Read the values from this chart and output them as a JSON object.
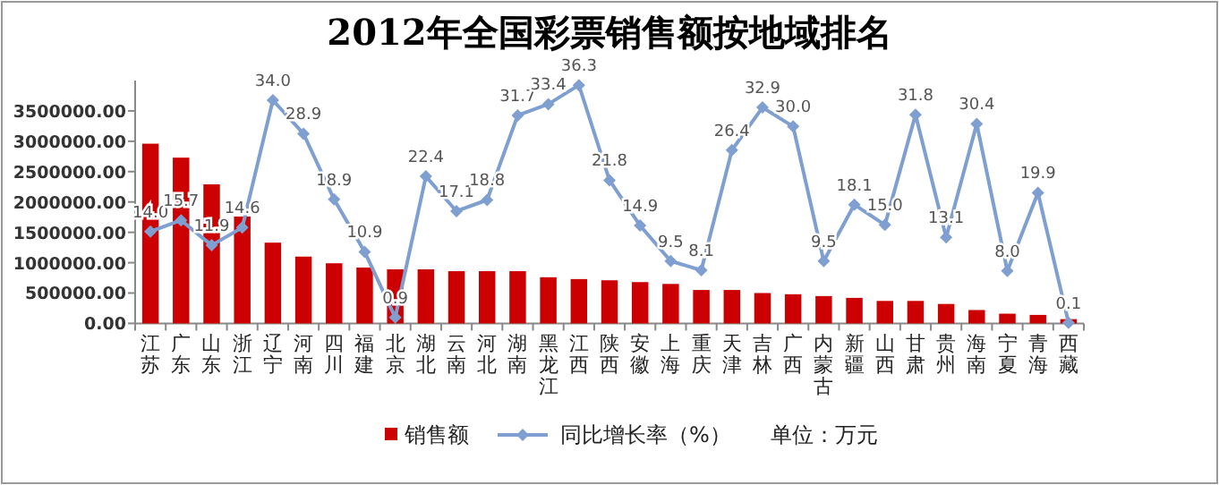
{
  "chart_data": {
    "type": "bar",
    "title": "2012年全国彩票销售额按地域排名",
    "categories": [
      "江苏",
      "广东",
      "山东",
      "浙江",
      "辽宁",
      "河南",
      "四川",
      "福建",
      "北京",
      "湖北",
      "云南",
      "河北",
      "湖南",
      "黑龙江",
      "江西",
      "陕西",
      "安徽",
      "上海",
      "重庆",
      "天津",
      "吉林",
      "广西",
      "内蒙古",
      "新疆",
      "山西",
      "甘肃",
      "贵州",
      "海南",
      "宁夏",
      "青海",
      "西藏"
    ],
    "series": [
      {
        "name": "销售额",
        "color": "#cc0000",
        "values": [
          2960000,
          2730000,
          2290000,
          1760000,
          1330000,
          1100000,
          990000,
          920000,
          890000,
          890000,
          860000,
          860000,
          860000,
          760000,
          730000,
          710000,
          680000,
          650000,
          550000,
          550000,
          500000,
          480000,
          450000,
          420000,
          370000,
          370000,
          320000,
          220000,
          160000,
          140000,
          70000
        ]
      },
      {
        "name": "同比增长率（%）",
        "type": "line",
        "axis": "y2",
        "color": "#7f9fd0",
        "marker": "diamond",
        "values": [
          14.0,
          15.7,
          11.9,
          14.6,
          34.0,
          28.9,
          18.9,
          10.9,
          0.9,
          22.4,
          17.1,
          18.8,
          31.7,
          33.4,
          36.3,
          21.8,
          14.9,
          9.5,
          8.1,
          26.4,
          32.9,
          30.0,
          9.5,
          18.1,
          15.0,
          31.8,
          13.1,
          30.4,
          8.0,
          19.9,
          0.1
        ],
        "value_labels": [
          "14.0",
          "15.7",
          "11.9",
          "14.6",
          "34.0",
          "28.9",
          "18.9",
          "10.9",
          "0.9",
          "22.4",
          "17.1",
          "18.8",
          "31.7",
          "33.4",
          "36.3",
          "21.8",
          "14.9",
          "9.5",
          "8.1",
          "26.4",
          "32.9",
          "30.0",
          "9.5",
          "18.1",
          "15.0",
          "31.8",
          "13.1",
          "30.4",
          "8.0",
          "19.9",
          "0.1"
        ]
      }
    ],
    "ylim": [
      0,
      4000000
    ],
    "yticks": [
      {
        "value": 0,
        "label": "0.00"
      },
      {
        "value": 500000,
        "label": "500000.00"
      },
      {
        "value": 1000000,
        "label": "1000000.00"
      },
      {
        "value": 1500000,
        "label": "1500000.00"
      },
      {
        "value": 2000000,
        "label": "2000000.00"
      },
      {
        "value": 2500000,
        "label": "2500000.00"
      },
      {
        "value": 3000000,
        "label": "3000000.00"
      },
      {
        "value": 3500000,
        "label": "3500000.00"
      }
    ],
    "y2lim": [
      0,
      37
    ],
    "legend": "bottom",
    "annotations": [
      "单位：万元"
    ]
  }
}
